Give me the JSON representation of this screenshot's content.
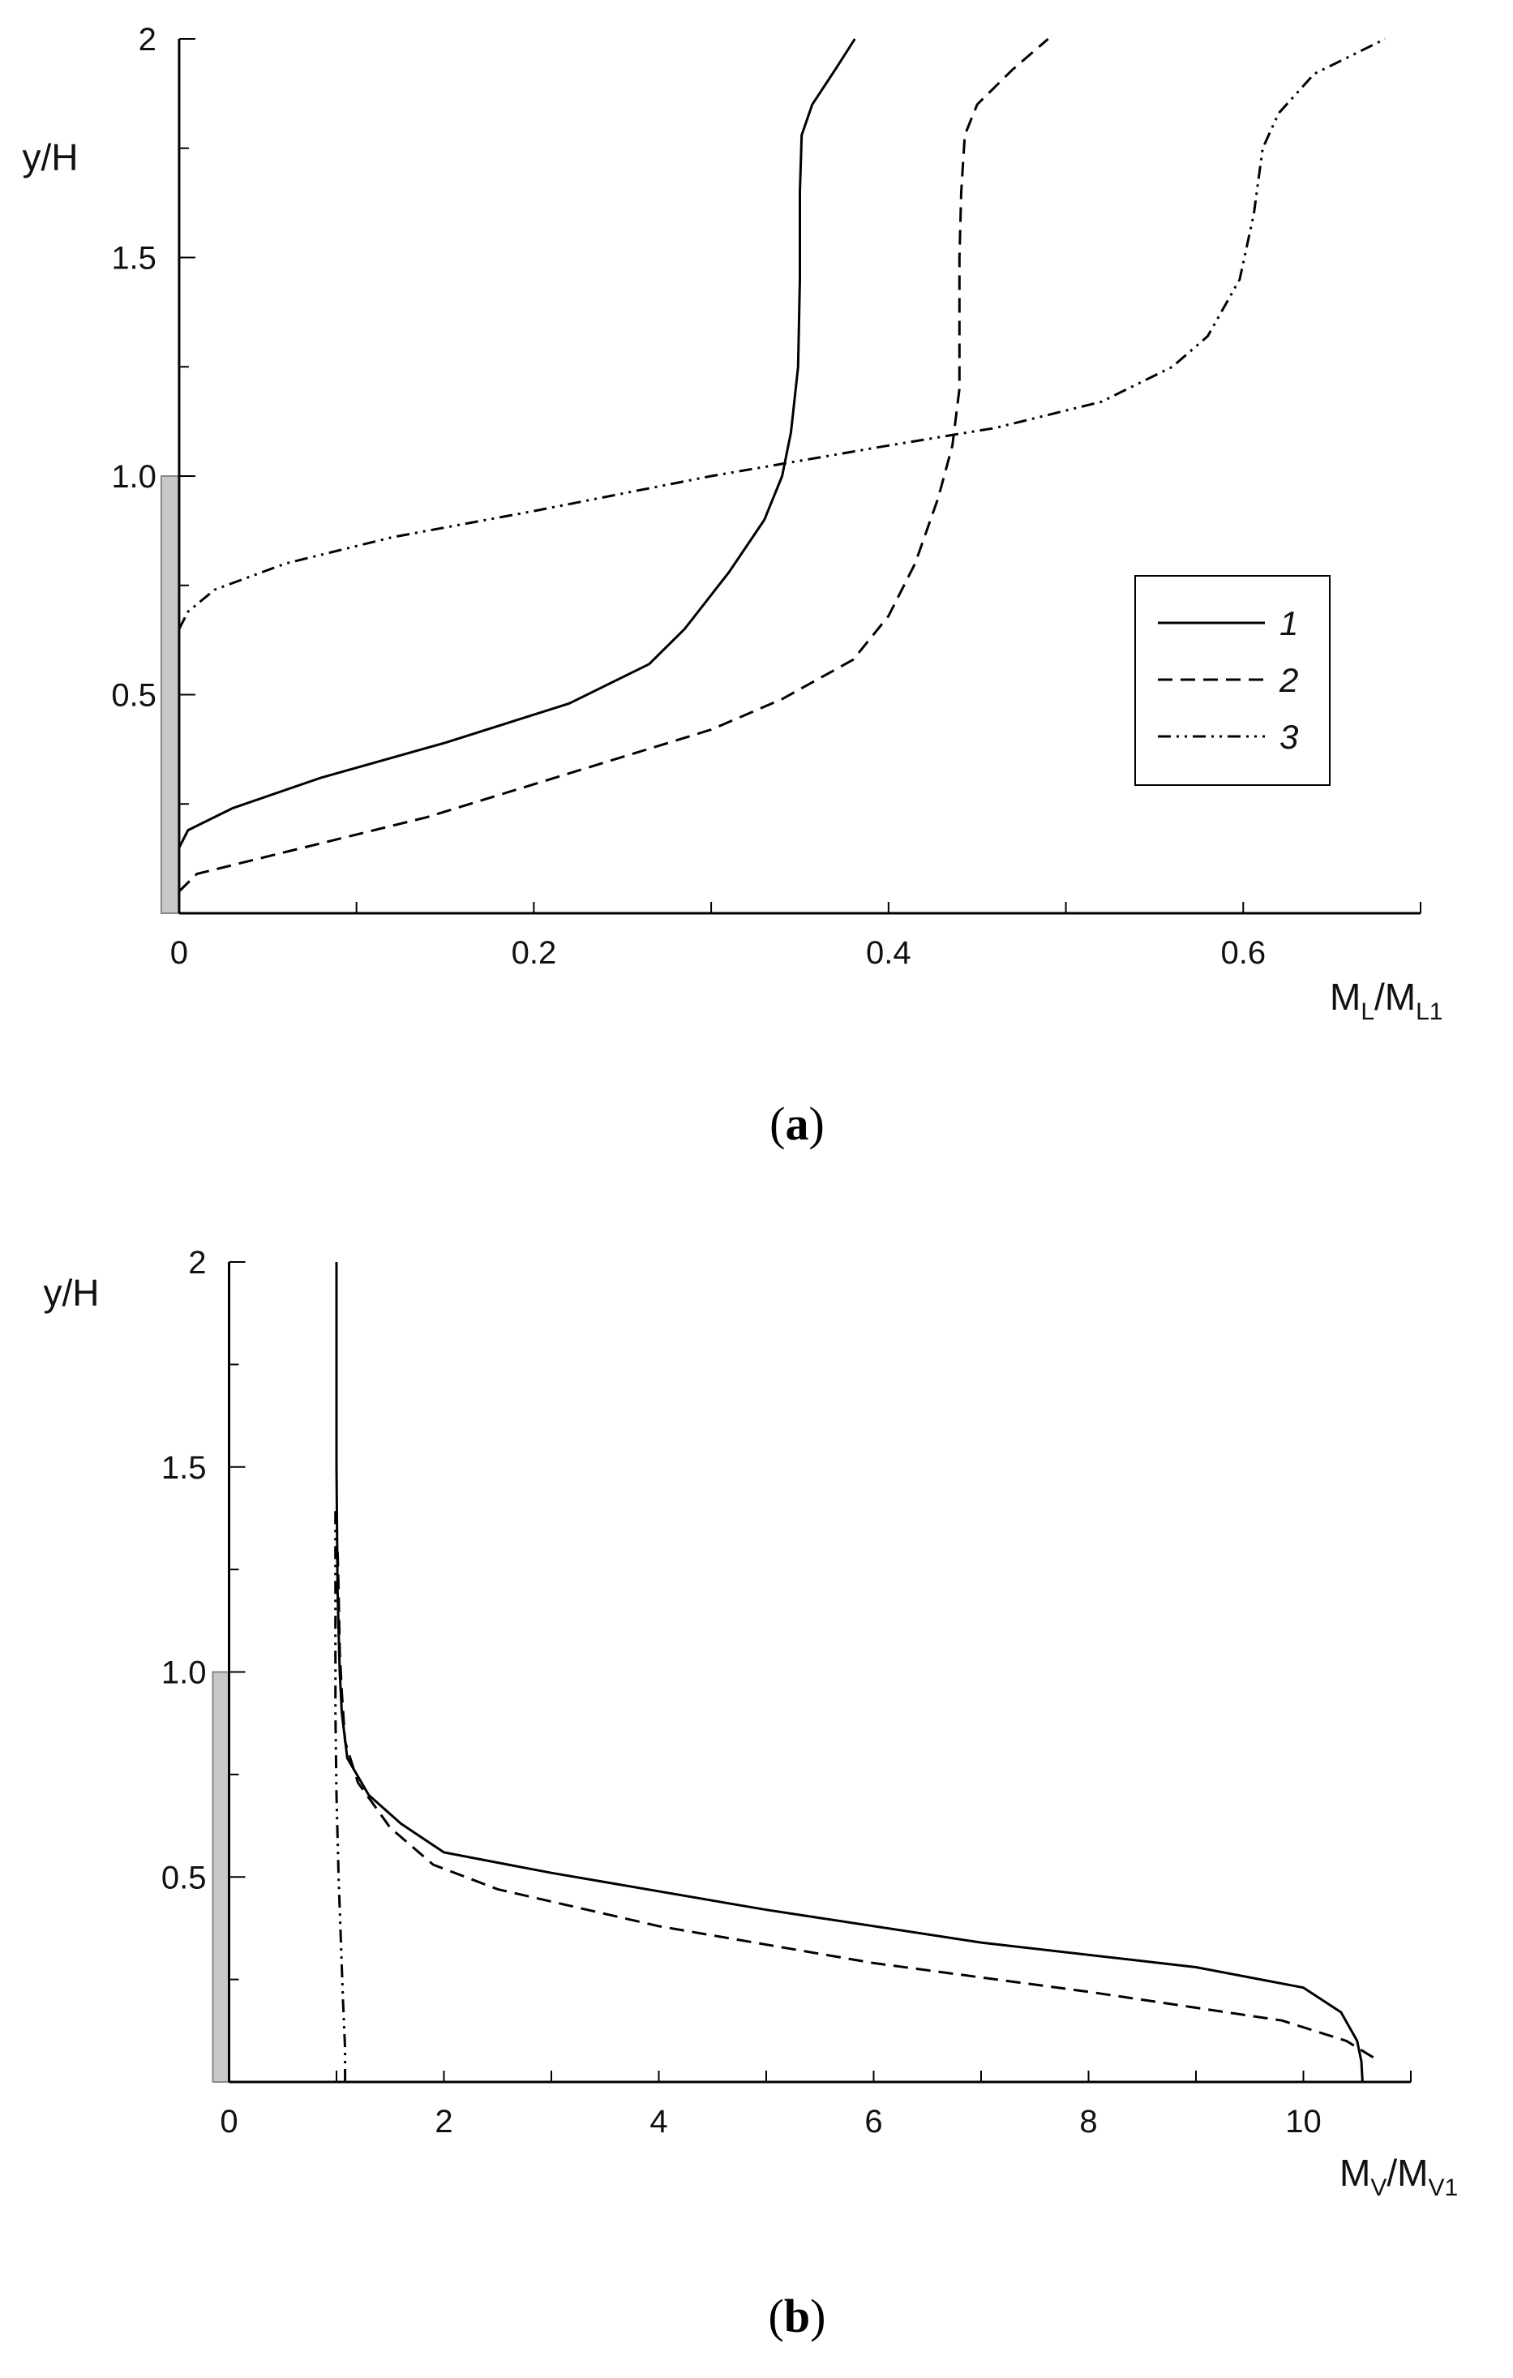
{
  "colors": {
    "line": "#000000",
    "wall_fill": "#c8c8c8",
    "wall_stroke": "#888888",
    "axis": "#000000"
  },
  "chart_data": [
    {
      "type": "line",
      "panel_label": "a",
      "ylabel": "y/H",
      "xlabel_main": "M",
      "xlabel_sub1": "L",
      "xlabel_mid": "/M",
      "xlabel_sub2": "L1",
      "xlim": [
        -0.005,
        0.7
      ],
      "ylim": [
        0,
        2
      ],
      "xticks": [
        0,
        0.2,
        0.4,
        0.6
      ],
      "xtick_labels": [
        "0",
        "0.2",
        "0.4",
        "0.6"
      ],
      "yticks": [
        0.5,
        1.0,
        1.5,
        2
      ],
      "ytick_labels": [
        "0.5",
        "1.0",
        "1.5",
        "2"
      ],
      "wall_height": 1.0,
      "legend": {
        "position": "right",
        "entries": [
          "1",
          "2",
          "3"
        ]
      },
      "series": [
        {
          "name": "1",
          "style": "solid",
          "points": [
            [
              0,
              0.15
            ],
            [
              0.005,
              0.19
            ],
            [
              0.03,
              0.24
            ],
            [
              0.08,
              0.31
            ],
            [
              0.15,
              0.39
            ],
            [
              0.22,
              0.48
            ],
            [
              0.265,
              0.57
            ],
            [
              0.285,
              0.65
            ],
            [
              0.31,
              0.78
            ],
            [
              0.33,
              0.9
            ],
            [
              0.34,
              1.0
            ],
            [
              0.345,
              1.1
            ],
            [
              0.349,
              1.25
            ],
            [
              0.35,
              1.45
            ],
            [
              0.35,
              1.65
            ],
            [
              0.351,
              1.78
            ],
            [
              0.357,
              1.85
            ],
            [
              0.37,
              1.93
            ],
            [
              0.381,
              2.0
            ]
          ]
        },
        {
          "name": "2",
          "style": "dashed",
          "points": [
            [
              0,
              0.05
            ],
            [
              0.01,
              0.09
            ],
            [
              0.06,
              0.14
            ],
            [
              0.14,
              0.22
            ],
            [
              0.22,
              0.32
            ],
            [
              0.3,
              0.42
            ],
            [
              0.34,
              0.49
            ],
            [
              0.38,
              0.58
            ],
            [
              0.4,
              0.68
            ],
            [
              0.415,
              0.8
            ],
            [
              0.428,
              0.95
            ],
            [
              0.436,
              1.07
            ],
            [
              0.44,
              1.2
            ],
            [
              0.44,
              1.35
            ],
            [
              0.44,
              1.5
            ],
            [
              0.441,
              1.65
            ],
            [
              0.443,
              1.78
            ],
            [
              0.45,
              1.85
            ],
            [
              0.47,
              1.93
            ],
            [
              0.49,
              2.0
            ]
          ]
        },
        {
          "name": "3",
          "style": "dashdotdot",
          "points": [
            [
              0,
              0.65
            ],
            [
              0.005,
              0.69
            ],
            [
              0.02,
              0.74
            ],
            [
              0.06,
              0.8
            ],
            [
              0.12,
              0.86
            ],
            [
              0.2,
              0.92
            ],
            [
              0.3,
              1.0
            ],
            [
              0.4,
              1.07
            ],
            [
              0.46,
              1.11
            ],
            [
              0.52,
              1.17
            ],
            [
              0.56,
              1.25
            ],
            [
              0.58,
              1.32
            ],
            [
              0.598,
              1.45
            ],
            [
              0.606,
              1.6
            ],
            [
              0.611,
              1.75
            ],
            [
              0.62,
              1.83
            ],
            [
              0.64,
              1.92
            ],
            [
              0.67,
              1.98
            ],
            [
              0.68,
              2.0
            ]
          ]
        }
      ]
    },
    {
      "type": "line",
      "panel_label": "b",
      "ylabel": "y/H",
      "xlabel_main": "M",
      "xlabel_sub1": "V",
      "xlabel_mid": "/M",
      "xlabel_sub2": "V1",
      "xlim": [
        -0.2,
        11
      ],
      "ylim": [
        0,
        2
      ],
      "xticks": [
        0,
        2,
        4,
        6,
        8,
        10
      ],
      "xtick_labels": [
        "0",
        "2",
        "4",
        "6",
        "8",
        "10"
      ],
      "yticks": [
        0.5,
        1.0,
        1.5,
        2
      ],
      "ytick_labels": [
        "0.5",
        "1.0",
        "1.5",
        "2"
      ],
      "wall_height": 1.0,
      "series": [
        {
          "name": "1",
          "style": "solid",
          "points": [
            [
              10.55,
              0
            ],
            [
              10.54,
              0.05
            ],
            [
              10.5,
              0.1
            ],
            [
              10.35,
              0.17
            ],
            [
              10.0,
              0.23
            ],
            [
              9.0,
              0.28
            ],
            [
              7.0,
              0.34
            ],
            [
              5.0,
              0.42
            ],
            [
              3.0,
              0.51
            ],
            [
              2.0,
              0.56
            ],
            [
              1.6,
              0.63
            ],
            [
              1.3,
              0.7
            ],
            [
              1.1,
              0.79
            ],
            [
              1.05,
              0.9
            ],
            [
              1.03,
              1.0
            ],
            [
              1.01,
              1.2
            ],
            [
              1.0,
              1.5
            ],
            [
              1.0,
              2.0
            ]
          ]
        },
        {
          "name": "2",
          "style": "dashed",
          "points": [
            [
              10.65,
              0.06
            ],
            [
              10.4,
              0.1
            ],
            [
              9.8,
              0.15
            ],
            [
              8.0,
              0.22
            ],
            [
              6.0,
              0.29
            ],
            [
              4.0,
              0.38
            ],
            [
              2.5,
              0.47
            ],
            [
              1.9,
              0.53
            ],
            [
              1.5,
              0.62
            ],
            [
              1.2,
              0.73
            ],
            [
              1.08,
              0.83
            ],
            [
              1.05,
              0.95
            ],
            [
              1.03,
              1.05
            ],
            [
              1.02,
              1.2
            ],
            [
              1.01,
              1.3
            ]
          ]
        },
        {
          "name": "3",
          "style": "dashdotdot",
          "points": [
            [
              1.08,
              0
            ],
            [
              1.08,
              0.08
            ],
            [
              1.06,
              0.2
            ],
            [
              1.04,
              0.35
            ],
            [
              1.02,
              0.5
            ],
            [
              1.0,
              0.7
            ],
            [
              0.99,
              0.9
            ],
            [
              0.99,
              1.1
            ],
            [
              0.99,
              1.3
            ],
            [
              0.99,
              1.4
            ]
          ]
        }
      ]
    }
  ]
}
